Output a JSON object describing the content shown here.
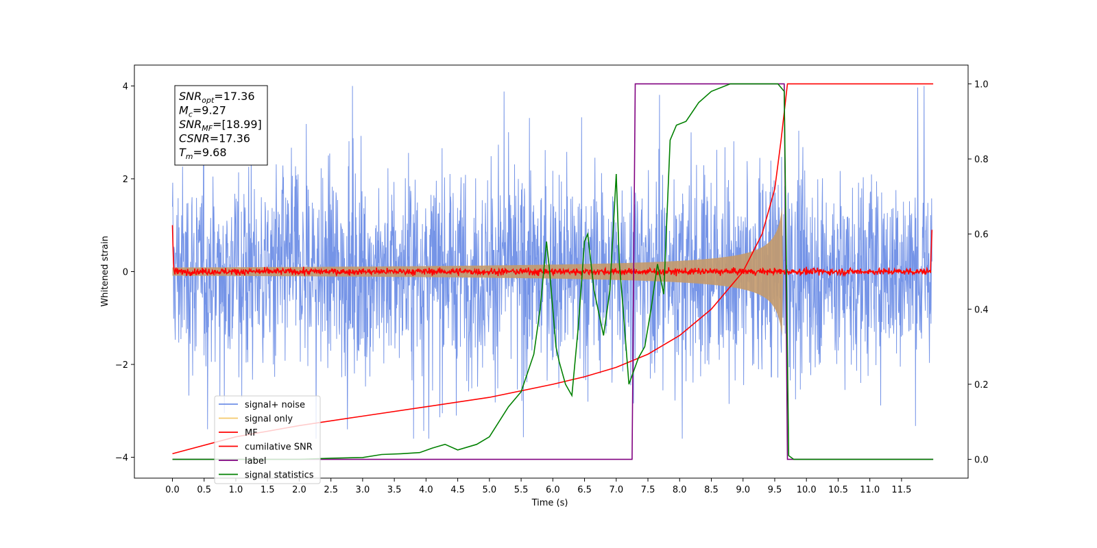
{
  "chart_data": {
    "type": "line",
    "xlabel": "Time (s)",
    "ylabel": "Whitened strain",
    "xlim": [
      -0.6,
      12.55
    ],
    "ylim": [
      -4.45,
      4.45
    ],
    "y2lim": [
      -0.05,
      1.05
    ],
    "xticks": [
      "0.0",
      "0.5",
      "1.0",
      "1.5",
      "2.0",
      "2.5",
      "3.0",
      "3.5",
      "4.0",
      "4.5",
      "5.0",
      "5.5",
      "6.0",
      "6.5",
      "7.0",
      "7.5",
      "8.0",
      "8.5",
      "9.0",
      "9.5",
      "10.0",
      "10.5",
      "11.0",
      "11.5"
    ],
    "yticks": [
      "4",
      "2",
      "0",
      "−2",
      "−4"
    ],
    "y2ticks": [
      "1.0",
      "0.8",
      "0.6",
      "0.4",
      "0.2",
      "0.0"
    ],
    "grid": false,
    "legend_position": "lower-left",
    "annotation": {
      "lines": [
        {
          "base": "SNR",
          "sub": "opt",
          "value": "=17.36"
        },
        {
          "base": "M",
          "sub": "c",
          "value": "=9.27"
        },
        {
          "base": "SNR",
          "sub": "MF",
          "value": "=[18.99]"
        },
        {
          "base": "CSNR",
          "sub": "",
          "value": "=17.36"
        },
        {
          "base": "T",
          "sub": "m",
          "value": "=9.68"
        }
      ]
    },
    "series": [
      {
        "name": "signal+ noise",
        "axis": "left",
        "color": "#6e8ee6",
        "kind": "noise",
        "amplitude_range": [
          -3.6,
          4.0
        ]
      },
      {
        "name": "signal only",
        "axis": "left",
        "color": "#f5c86a",
        "kind": "chirp",
        "merger_time": 9.68,
        "peak_amplitude": 1.45
      },
      {
        "name": "MF",
        "axis": "left",
        "color": "#ff0000",
        "kind": "flat-noise",
        "level": 0.0
      },
      {
        "name": "cumilative SNR",
        "axis": "right",
        "color": "#ff0000",
        "x": [
          0.0,
          1.0,
          2.0,
          3.0,
          4.0,
          5.0,
          6.0,
          6.5,
          7.0,
          7.5,
          8.0,
          8.5,
          9.0,
          9.3,
          9.5,
          9.6,
          9.7,
          12.0
        ],
        "y": [
          0.015,
          0.06,
          0.09,
          0.115,
          0.14,
          0.165,
          0.2,
          0.22,
          0.245,
          0.28,
          0.33,
          0.4,
          0.5,
          0.6,
          0.72,
          0.85,
          1.0,
          1.0
        ]
      },
      {
        "name": "label",
        "axis": "right",
        "color": "#800080",
        "x": [
          0.0,
          7.25,
          7.3,
          9.65,
          9.7,
          12.0
        ],
        "y": [
          0.0,
          0.0,
          1.0,
          1.0,
          0.0,
          0.0
        ]
      },
      {
        "name": "signal statistics",
        "axis": "right",
        "color": "#008000",
        "x": [
          0.0,
          1.0,
          2.0,
          2.5,
          3.0,
          3.3,
          3.6,
          3.9,
          4.1,
          4.3,
          4.5,
          4.8,
          5.0,
          5.3,
          5.5,
          5.7,
          5.8,
          5.9,
          5.95,
          6.05,
          6.1,
          6.2,
          6.3,
          6.4,
          6.5,
          6.55,
          6.65,
          6.8,
          6.9,
          7.0,
          7.05,
          7.1,
          7.2,
          7.35,
          7.45,
          7.55,
          7.65,
          7.75,
          7.85,
          7.95,
          8.1,
          8.3,
          8.5,
          8.8,
          9.0,
          9.3,
          9.55,
          9.65,
          9.72,
          9.8,
          10.0,
          12.0
        ],
        "y": [
          0.0,
          0.0,
          0.0,
          0.003,
          0.005,
          0.013,
          0.015,
          0.018,
          0.03,
          0.04,
          0.025,
          0.04,
          0.06,
          0.14,
          0.18,
          0.28,
          0.4,
          0.58,
          0.5,
          0.3,
          0.26,
          0.2,
          0.17,
          0.35,
          0.58,
          0.6,
          0.45,
          0.33,
          0.45,
          0.76,
          0.52,
          0.42,
          0.2,
          0.27,
          0.3,
          0.4,
          0.52,
          0.44,
          0.85,
          0.89,
          0.9,
          0.95,
          0.98,
          1.0,
          1.0,
          1.0,
          1.0,
          0.98,
          0.01,
          0.0,
          0.0,
          0.0
        ]
      }
    ]
  }
}
